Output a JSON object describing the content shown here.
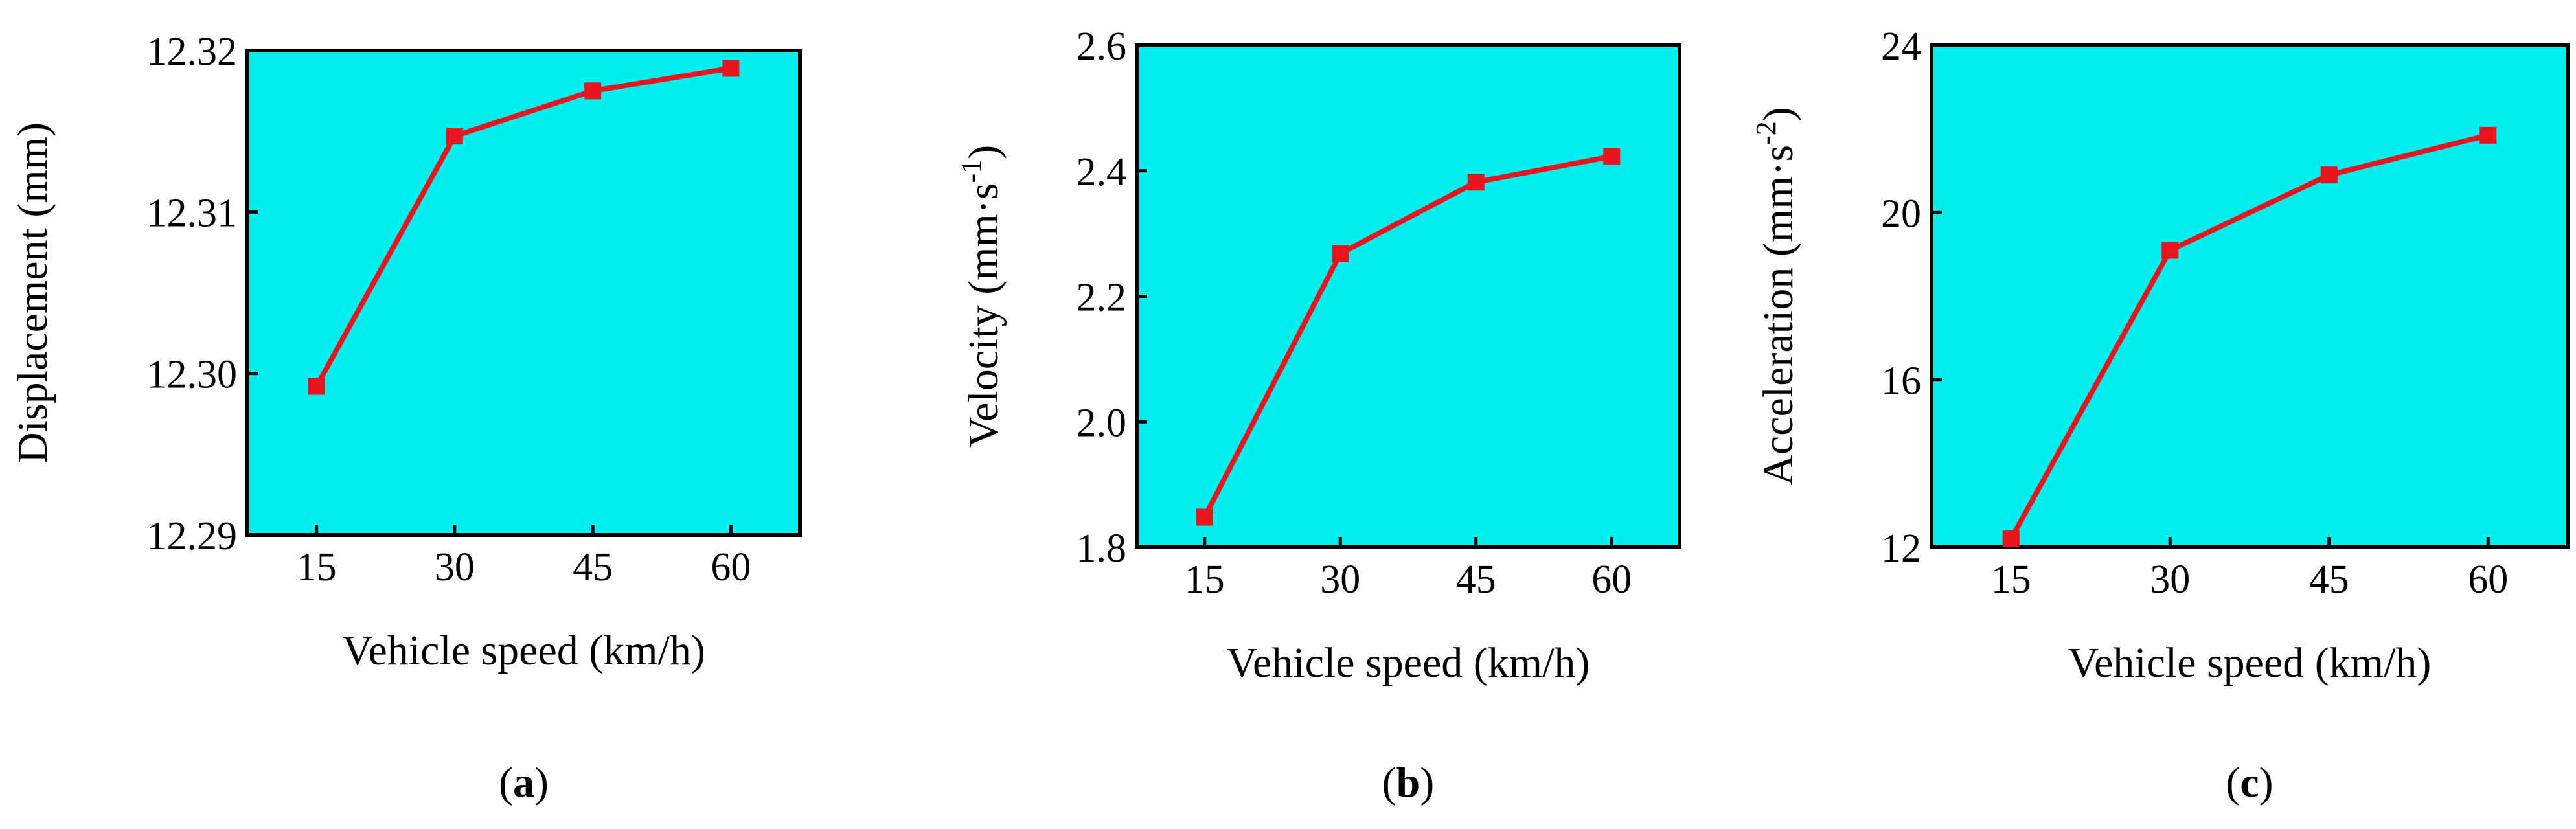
{
  "chart_data": [
    {
      "type": "line",
      "panel_label": "a",
      "x": [
        15,
        30,
        45,
        60
      ],
      "series": [
        {
          "name": "Displacement",
          "values": [
            12.2992,
            12.3147,
            12.3175,
            12.3189
          ]
        }
      ],
      "xlabel": "Vehicle speed (km/h)",
      "ylabel": "Displacement (mm)",
      "xticks": [
        "15",
        "30",
        "45",
        "60"
      ],
      "yticks": [
        "12.29",
        "12.30",
        "12.31",
        "12.32"
      ],
      "ytick_values": [
        12.29,
        12.3,
        12.31,
        12.32
      ],
      "xlim": [
        7.5,
        67.5
      ],
      "ylim": [
        12.29,
        12.32
      ],
      "grid": false,
      "colors": {
        "background": "#00f0f0",
        "line": "#e8141e"
      }
    },
    {
      "type": "line",
      "panel_label": "b",
      "x": [
        15,
        30,
        45,
        60
      ],
      "series": [
        {
          "name": "Velocity",
          "values": [
            1.848,
            2.268,
            2.382,
            2.423
          ]
        }
      ],
      "xlabel": "Vehicle speed (km/h)",
      "ylabel": "Velocity (mm·s",
      "ylabel_sup": "-1",
      "ylabel_end": ")",
      "xticks": [
        "15",
        "30",
        "45",
        "60"
      ],
      "yticks": [
        "1.8",
        "2.0",
        "2.2",
        "2.4",
        "2.6"
      ],
      "ytick_values": [
        1.8,
        2.0,
        2.2,
        2.4,
        2.6
      ],
      "xlim": [
        7.5,
        67.5
      ],
      "ylim": [
        1.8,
        2.6
      ],
      "grid": false,
      "colors": {
        "background": "#00f0f0",
        "line": "#e8141e"
      }
    },
    {
      "type": "line",
      "panel_label": "c",
      "x": [
        15,
        30,
        45,
        60
      ],
      "series": [
        {
          "name": "Acceleration",
          "values": [
            12.2,
            19.1,
            20.9,
            21.85
          ]
        }
      ],
      "xlabel": "Vehicle speed (km/h)",
      "ylabel": "Acceleration (mm·s",
      "ylabel_sup": "-2",
      "ylabel_end": ")",
      "xticks": [
        "15",
        "30",
        "45",
        "60"
      ],
      "yticks": [
        "12",
        "16",
        "20",
        "24"
      ],
      "ytick_values": [
        12,
        16,
        20,
        24
      ],
      "xlim": [
        7.5,
        67.5
      ],
      "ylim": [
        12,
        24
      ],
      "grid": false,
      "colors": {
        "background": "#00f0f0",
        "line": "#e8141e"
      }
    }
  ]
}
